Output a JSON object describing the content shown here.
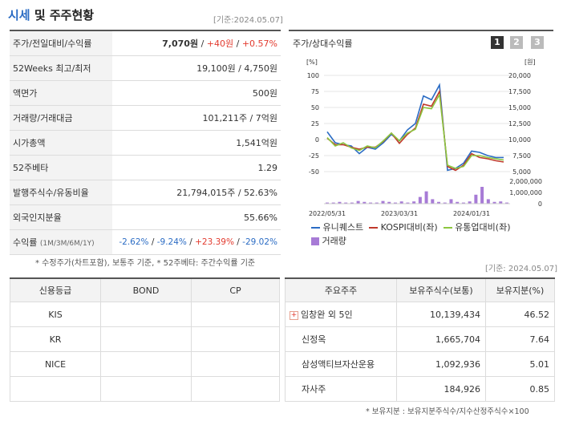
{
  "header": {
    "title_part1": "시세",
    "title_part2": " 및 주주현황",
    "date_stamp": "[기준:2024.05.07]"
  },
  "info": {
    "rows": [
      {
        "label": "주가/전일대비/수익률",
        "value": ""
      },
      {
        "label": "52Weeks 최고/최저",
        "value": "19,100원 / 4,750원"
      },
      {
        "label": "액면가",
        "value": "500원"
      },
      {
        "label": "거래량/거래대금",
        "value": "101,211주 / 7억원"
      },
      {
        "label": "시가총액",
        "value": "1,541억원"
      },
      {
        "label": "52주베타",
        "value": "1.29"
      },
      {
        "label": "발행주식수/유동비율",
        "value": "21,794,015주 / 52.63%"
      },
      {
        "label": "외국인지분율",
        "value": "55.66%"
      },
      {
        "label": "수익률",
        "label_sub": "(1M/3M/6M/1Y)",
        "value": ""
      }
    ],
    "price": "7,070원",
    "change": "+40원",
    "change_pct": "+0.57%",
    "returns": [
      "-2.62%",
      "-9.24%",
      "+23.39%",
      "-29.02%"
    ]
  },
  "note_left": "* 수정주가(차트포함), 보통주 기준, * 52주베타: 주간수익률 기준",
  "chart": {
    "title": "주가/상대수익률",
    "tabs": [
      "1",
      "2",
      "3"
    ],
    "left_unit": "[%]",
    "right_unit": "[원]",
    "legend": [
      "유니퀘스트",
      "KOSPI대비(좌)",
      "유통업대비(좌)",
      "거래량"
    ]
  },
  "chart_data": {
    "type": "line",
    "x_ticks": [
      "2022/05/31",
      "2023/03/31",
      "2024/01/31"
    ],
    "y_left_ticks": [
      "100",
      "75",
      "50",
      "25",
      "0",
      "-25",
      "-50"
    ],
    "y_right_ticks": [
      "20,000",
      "17,500",
      "15,000",
      "12,500",
      "10,000",
      "7,500",
      "5,000"
    ],
    "volume_ticks": [
      "2,000,000",
      "1,000,000",
      "0"
    ],
    "ylim_left": [
      -50,
      100
    ],
    "series": [
      {
        "name": "유니퀘스트",
        "color": "#2b6cc4",
        "values": [
          12,
          -5,
          -8,
          -10,
          -22,
          -12,
          -15,
          -5,
          8,
          -2,
          15,
          25,
          68,
          62,
          85,
          -48,
          -45,
          -37,
          -18,
          -20,
          -25,
          -28,
          -28
        ]
      },
      {
        "name": "KOSPI대비(좌)",
        "color": "#c0392b",
        "values": [
          2,
          -8,
          -8,
          -12,
          -15,
          -12,
          -12,
          -3,
          10,
          -6,
          8,
          18,
          55,
          52,
          75,
          -42,
          -48,
          -40,
          -22,
          -28,
          -30,
          -33,
          -35
        ]
      },
      {
        "name": "유통업대비(좌)",
        "color": "#8cc63f",
        "values": [
          3,
          -10,
          -5,
          -13,
          -17,
          -10,
          -13,
          -2,
          10,
          -2,
          10,
          16,
          50,
          48,
          70,
          -40,
          -45,
          -42,
          -25,
          -25,
          -28,
          -30,
          -32
        ]
      }
    ],
    "volume": [
      0.05,
      0.05,
      0.08,
      0.05,
      0.05,
      0.12,
      0.08,
      0.05,
      0.05,
      0.12,
      0.08,
      0.05,
      0.1,
      0.05,
      0.1,
      0.3,
      0.55,
      0.2,
      0.08,
      0.05,
      0.2,
      0.08,
      0.05,
      0.1,
      0.4,
      0.75,
      0.2,
      0.08,
      0.1,
      0.05
    ]
  },
  "credit": {
    "headers": [
      "신용등급",
      "BOND",
      "CP"
    ],
    "rows": [
      [
        "KIS",
        "",
        ""
      ],
      [
        "KR",
        "",
        ""
      ],
      [
        "NICE",
        "",
        ""
      ],
      [
        "",
        "",
        ""
      ]
    ]
  },
  "holders": {
    "date_stamp": "[기준: 2024.05.07]",
    "headers": [
      "주요주주",
      "보유주식수(보통)",
      "보유지분(%)"
    ],
    "rows": [
      {
        "name": "임창완 외 5인",
        "shares": "10,139,434",
        "pct": "46.52"
      },
      {
        "name": "신정옥",
        "shares": "1,665,704",
        "pct": "7.64"
      },
      {
        "name": "삼성액티브자산운용",
        "shares": "1,092,936",
        "pct": "5.01"
      },
      {
        "name": "자사주",
        "shares": "184,926",
        "pct": "0.85"
      }
    ],
    "note": "* 보유지분 : 보유지분주식수/지수산정주식수×100"
  }
}
